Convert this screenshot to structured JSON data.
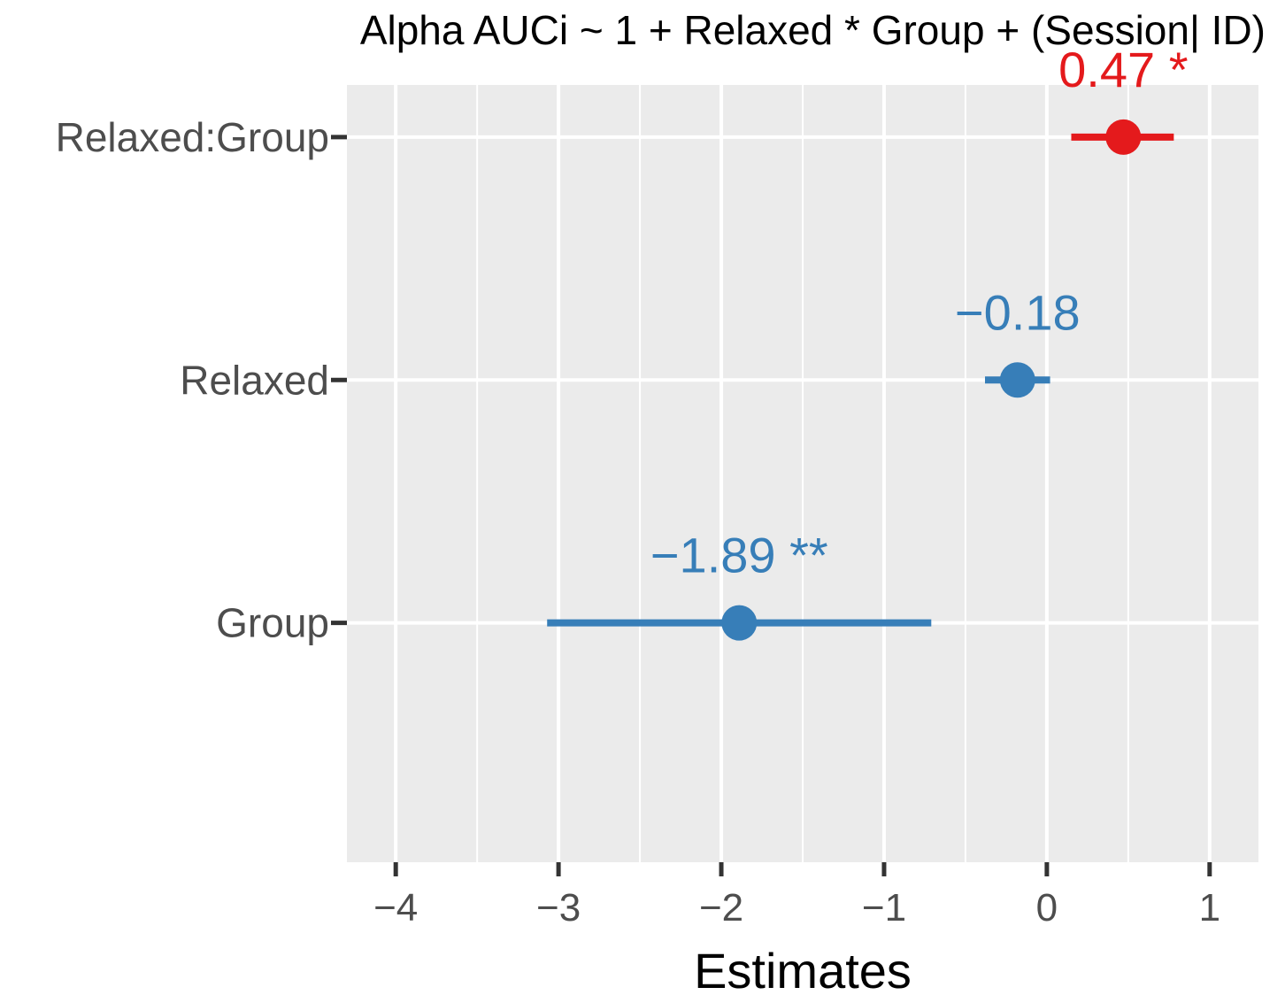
{
  "chart_data": {
    "type": "forest",
    "title": "Alpha AUCi ~ 1 + Relaxed * Group + (Session| ID)",
    "xlabel": "Estimates",
    "ylabel": "",
    "xlim": [
      -4.3,
      1.3
    ],
    "x_ticks": [
      -4,
      -3,
      -2,
      -1,
      0,
      1
    ],
    "x_tick_labels": [
      "−4",
      "−3",
      "−2",
      "−1",
      "0",
      "1"
    ],
    "grid": true,
    "legend": "none",
    "colors": {
      "positive": "#e41a1c",
      "negative": "#377eb8"
    },
    "terms": [
      {
        "name": "Relaxed:Group",
        "estimate": 0.47,
        "ci_low": 0.15,
        "ci_high": 0.78,
        "label": "0.47 *",
        "direction": "positive"
      },
      {
        "name": "Relaxed",
        "estimate": -0.18,
        "ci_low": -0.38,
        "ci_high": 0.02,
        "label": "−0.18",
        "direction": "negative"
      },
      {
        "name": "Group",
        "estimate": -1.89,
        "ci_low": -3.07,
        "ci_high": -0.71,
        "label": "−1.89 **",
        "direction": "negative"
      }
    ]
  }
}
